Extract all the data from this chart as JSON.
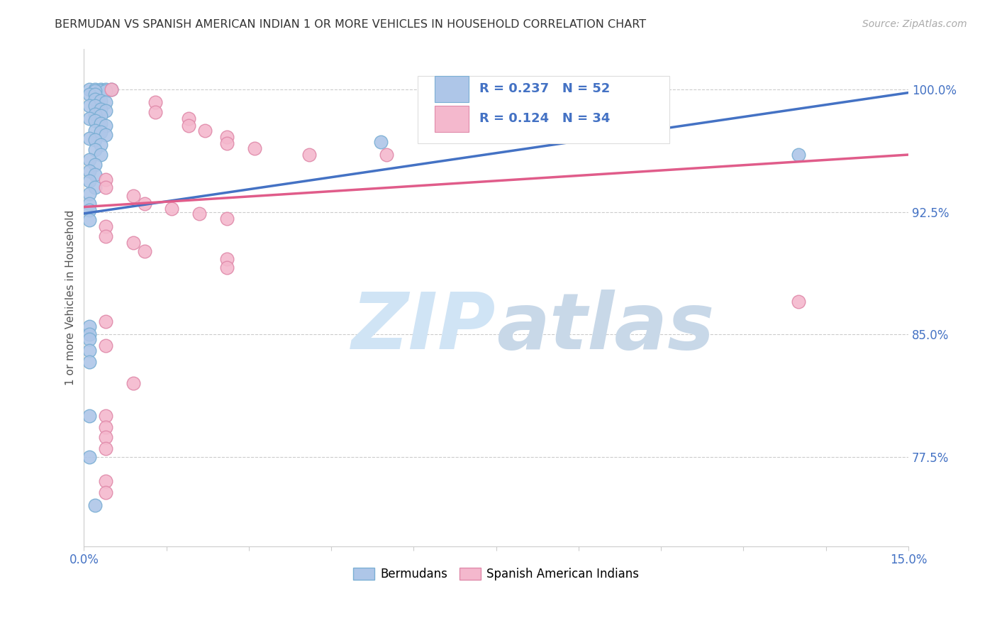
{
  "title": "BERMUDAN VS SPANISH AMERICAN INDIAN 1 OR MORE VEHICLES IN HOUSEHOLD CORRELATION CHART",
  "source_text": "Source: ZipAtlas.com",
  "ylabel": "1 or more Vehicles in Household",
  "xlim": [
    0.0,
    0.15
  ],
  "ylim": [
    0.72,
    1.025
  ],
  "ytick_vals": [
    0.775,
    0.85,
    0.925,
    1.0
  ],
  "grid_color": "#cccccc",
  "background_color": "#ffffff",
  "legend_R_blue": "0.237",
  "legend_N_blue": "52",
  "legend_R_pink": "0.124",
  "legend_N_pink": "34",
  "blue_line": [
    [
      0.0,
      0.924
    ],
    [
      0.15,
      0.998
    ]
  ],
  "pink_line": [
    [
      0.0,
      0.928
    ],
    [
      0.15,
      0.96
    ]
  ],
  "blue_scatter": [
    [
      0.001,
      1.0
    ],
    [
      0.002,
      1.0
    ],
    [
      0.003,
      1.0
    ],
    [
      0.004,
      1.0
    ],
    [
      0.005,
      1.0
    ],
    [
      0.003,
      0.999
    ],
    [
      0.004,
      0.999
    ],
    [
      0.002,
      0.999
    ],
    [
      0.001,
      0.997
    ],
    [
      0.002,
      0.997
    ],
    [
      0.002,
      0.994
    ],
    [
      0.003,
      0.993
    ],
    [
      0.004,
      0.992
    ],
    [
      0.001,
      0.99
    ],
    [
      0.002,
      0.99
    ],
    [
      0.003,
      0.988
    ],
    [
      0.004,
      0.987
    ],
    [
      0.002,
      0.985
    ],
    [
      0.003,
      0.984
    ],
    [
      0.001,
      0.982
    ],
    [
      0.002,
      0.981
    ],
    [
      0.003,
      0.979
    ],
    [
      0.004,
      0.978
    ],
    [
      0.002,
      0.975
    ],
    [
      0.003,
      0.974
    ],
    [
      0.004,
      0.972
    ],
    [
      0.001,
      0.97
    ],
    [
      0.002,
      0.969
    ],
    [
      0.003,
      0.966
    ],
    [
      0.002,
      0.963
    ],
    [
      0.003,
      0.96
    ],
    [
      0.001,
      0.957
    ],
    [
      0.002,
      0.954
    ],
    [
      0.001,
      0.95
    ],
    [
      0.002,
      0.948
    ],
    [
      0.001,
      0.944
    ],
    [
      0.002,
      0.94
    ],
    [
      0.001,
      0.936
    ],
    [
      0.001,
      0.93
    ],
    [
      0.001,
      0.926
    ],
    [
      0.001,
      0.92
    ],
    [
      0.001,
      0.855
    ],
    [
      0.001,
      0.85
    ],
    [
      0.001,
      0.847
    ],
    [
      0.001,
      0.84
    ],
    [
      0.001,
      0.833
    ],
    [
      0.001,
      0.8
    ],
    [
      0.001,
      0.775
    ],
    [
      0.002,
      0.745
    ],
    [
      0.13,
      0.96
    ],
    [
      0.054,
      0.968
    ],
    [
      0.077,
      0.975
    ]
  ],
  "pink_scatter": [
    [
      0.005,
      1.0
    ],
    [
      0.013,
      0.992
    ],
    [
      0.013,
      0.986
    ],
    [
      0.019,
      0.982
    ],
    [
      0.019,
      0.978
    ],
    [
      0.022,
      0.975
    ],
    [
      0.026,
      0.971
    ],
    [
      0.026,
      0.967
    ],
    [
      0.031,
      0.964
    ],
    [
      0.041,
      0.96
    ],
    [
      0.055,
      0.96
    ],
    [
      0.004,
      0.945
    ],
    [
      0.004,
      0.94
    ],
    [
      0.009,
      0.935
    ],
    [
      0.011,
      0.93
    ],
    [
      0.016,
      0.927
    ],
    [
      0.021,
      0.924
    ],
    [
      0.026,
      0.921
    ],
    [
      0.004,
      0.916
    ],
    [
      0.004,
      0.91
    ],
    [
      0.009,
      0.906
    ],
    [
      0.011,
      0.901
    ],
    [
      0.026,
      0.896
    ],
    [
      0.026,
      0.891
    ],
    [
      0.004,
      0.858
    ],
    [
      0.004,
      0.843
    ],
    [
      0.009,
      0.82
    ],
    [
      0.13,
      0.87
    ],
    [
      0.004,
      0.8
    ],
    [
      0.004,
      0.793
    ],
    [
      0.004,
      0.787
    ],
    [
      0.004,
      0.78
    ],
    [
      0.004,
      0.76
    ],
    [
      0.004,
      0.753
    ]
  ],
  "blue_line_color": "#4472c4",
  "pink_line_color": "#e05c8a",
  "scatter_blue_color": "#aec6e8",
  "scatter_pink_color": "#f4b8cd",
  "scatter_blue_edge": "#7bafd4",
  "scatter_pink_edge": "#e08aaa",
  "watermark_zip": "ZIP",
  "watermark_atlas": "atlas",
  "watermark_color_zip": "#d0e4f5",
  "watermark_color_atlas": "#c8d8e8",
  "watermark_fontsize": 80
}
